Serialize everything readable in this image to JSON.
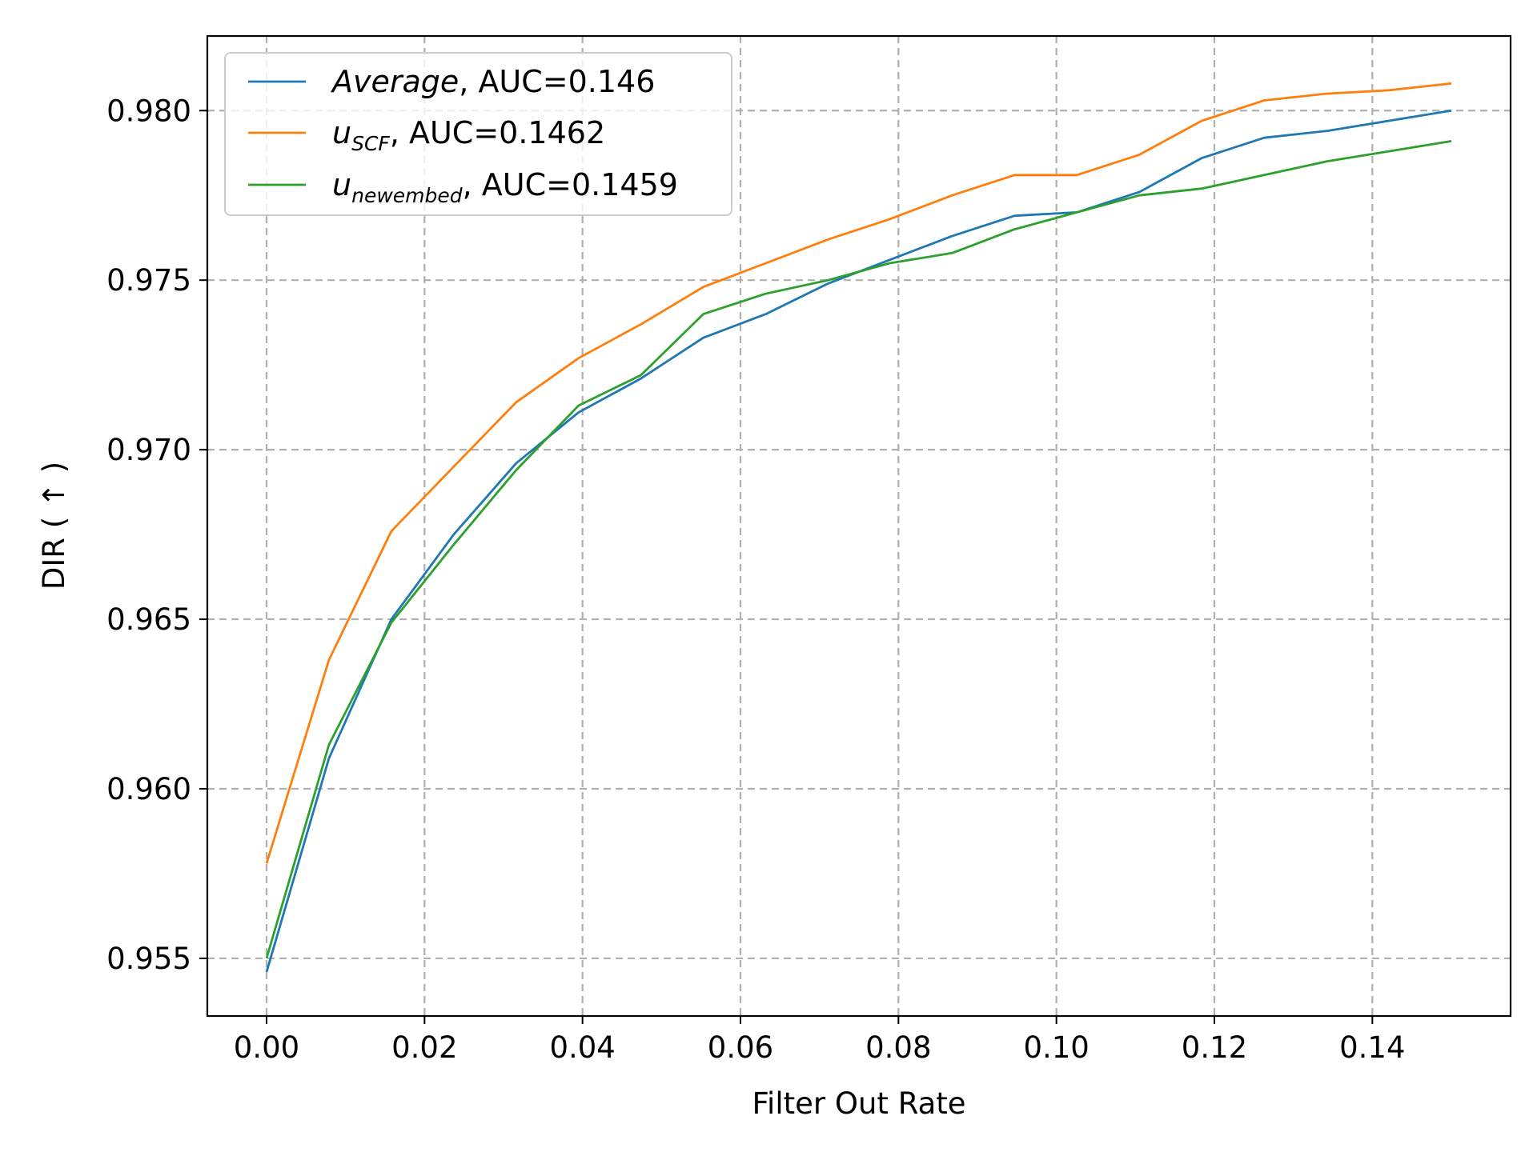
{
  "chart_data": {
    "type": "line",
    "title": "",
    "xlabel": "Filter Out Rate",
    "ylabel": "DIR ( ↑ )",
    "xlim": [
      -0.0075,
      0.1575
    ],
    "ylim": [
      0.9533,
      0.9822
    ],
    "x_ticks": [
      "0.00",
      "0.02",
      "0.04",
      "0.06",
      "0.08",
      "0.10",
      "0.12",
      "0.14"
    ],
    "x_tick_values": [
      0,
      0.02,
      0.04,
      0.06,
      0.08,
      0.1,
      0.12,
      0.14
    ],
    "y_ticks": [
      "0.955",
      "0.960",
      "0.965",
      "0.970",
      "0.975",
      "0.980"
    ],
    "y_tick_values": [
      0.955,
      0.96,
      0.965,
      0.97,
      0.975,
      0.98
    ],
    "grid": true,
    "legend_position": "upper left",
    "x": [
      0,
      0.0079,
      0.0158,
      0.0237,
      0.0316,
      0.0395,
      0.0474,
      0.0553,
      0.0632,
      0.0711,
      0.0789,
      0.0868,
      0.0947,
      0.1026,
      0.1105,
      0.1184,
      0.1263,
      0.1342,
      0.1421,
      0.15
    ],
    "series": [
      {
        "name_main": "Average",
        "name_sub": "",
        "name_suffix": ", AUC=0.146",
        "color": "#1f77b4",
        "values": [
          0.9546,
          0.9609,
          0.965,
          0.9675,
          0.9696,
          0.9711,
          0.9721,
          0.9733,
          0.974,
          0.9749,
          0.9756,
          0.9763,
          0.9769,
          0.977,
          0.9776,
          0.9786,
          0.9792,
          0.9794,
          0.9797,
          0.98
        ]
      },
      {
        "name_main": "u",
        "name_sub": "SCF",
        "name_suffix": ", AUC=0.1462",
        "color": "#ff7f0e",
        "values": [
          0.9578,
          0.9638,
          0.9676,
          0.9695,
          0.9714,
          0.9727,
          0.9737,
          0.9748,
          0.9755,
          0.9762,
          0.9768,
          0.9775,
          0.9781,
          0.9781,
          0.9787,
          0.9797,
          0.9803,
          0.9805,
          0.9806,
          0.9808
        ]
      },
      {
        "name_main": "u",
        "name_sub": "newembed",
        "name_suffix": ", AUC=0.1459",
        "color": "#2ca02c",
        "values": [
          0.955,
          0.9613,
          0.9649,
          0.9672,
          0.9694,
          0.9713,
          0.9722,
          0.974,
          0.9746,
          0.975,
          0.9755,
          0.9758,
          0.9765,
          0.977,
          0.9775,
          0.9777,
          0.9781,
          0.9785,
          0.9788,
          0.9791
        ]
      }
    ]
  }
}
